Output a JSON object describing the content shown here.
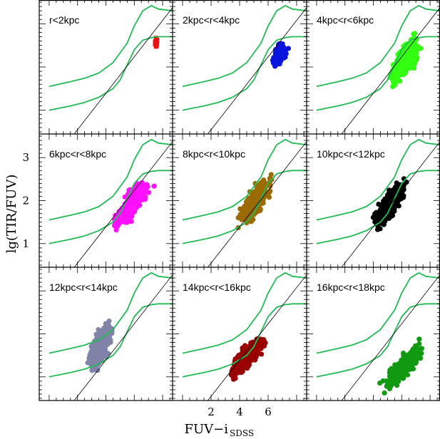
{
  "figure": {
    "xlabel_main": "FUV−i",
    "xlabel_sub": "SDSS",
    "ylabel": "lg(TIR/FUV)",
    "x_tick_labels": [
      "2",
      "4",
      "6"
    ],
    "y_tick_labels": [
      "1",
      "2",
      "3"
    ]
  },
  "colors": {
    "track": "#22bb55",
    "line": "#000000"
  },
  "chart_data": {
    "type": "scatter",
    "layout": "3x3 grid of panels with shared axes",
    "xlabel": "FUV−iSDSS",
    "ylabel": "lg(TIR/FUV)",
    "xlim": [
      -0.7,
      8.7
    ],
    "ylim": [
      0.45,
      3.55
    ],
    "x_ticks": [
      2,
      4,
      6
    ],
    "y_ticks": [
      1,
      2,
      3
    ],
    "reference_line": {
      "type": "linear",
      "points": [
        [
          0.7,
          0.0
        ],
        [
          9.0,
          3.5
        ]
      ]
    },
    "model_tracks": [
      {
        "x": [
          0.0,
          1.5,
          2.5,
          3.5,
          4.5,
          5.5,
          6.0,
          6.6,
          7.2,
          7.7,
          8.7
        ],
        "y": [
          1.55,
          1.66,
          1.74,
          1.86,
          2.1,
          2.55,
          2.95,
          3.3,
          3.42,
          3.34,
          3.3
        ]
      },
      {
        "x": [
          0.0,
          1.5,
          2.5,
          3.5,
          4.5,
          5.0,
          5.5,
          6.0,
          6.6,
          7.2,
          7.7,
          8.7
        ],
        "y": [
          1.0,
          1.1,
          1.18,
          1.3,
          1.5,
          1.7,
          2.05,
          2.4,
          2.62,
          2.68,
          2.7,
          2.7
        ]
      }
    ],
    "panels": [
      {
        "label": "r<2kpc",
        "color": "#ee1111",
        "marker": "square",
        "center": [
          7.55,
          2.55
        ],
        "spread": [
          0.08,
          0.16
        ],
        "slope": 0.0,
        "n": 14
      },
      {
        "label": "2kpc<r<4kpc",
        "color": "#0a14dd",
        "marker": "circle",
        "center": [
          6.8,
          2.3
        ],
        "spread": [
          0.45,
          0.18
        ],
        "slope": 0.35,
        "n": 110
      },
      {
        "label": "4kpc<r<6kpc",
        "color": "#33ff11",
        "marker": "circle",
        "center": [
          6.2,
          2.15
        ],
        "spread": [
          0.9,
          0.28
        ],
        "slope": 0.4,
        "n": 380
      },
      {
        "label": "6kpc<r<8kpc",
        "color": "#ff11ff",
        "marker": "circle",
        "center": [
          5.9,
          1.95
        ],
        "spread": [
          0.95,
          0.26
        ],
        "slope": 0.38,
        "n": 420
      },
      {
        "label": "8kpc<r<10kpc",
        "color": "#9b6a00",
        "marker": "circle",
        "center": [
          5.1,
          1.98
        ],
        "spread": [
          0.9,
          0.26
        ],
        "slope": 0.38,
        "n": 480
      },
      {
        "label": "10kpc<r<12kpc",
        "color": "#000000",
        "marker": "circle",
        "center": [
          5.2,
          1.92
        ],
        "spread": [
          0.85,
          0.26
        ],
        "slope": 0.4,
        "n": 520
      },
      {
        "label": "12kpc<r<14kpc",
        "color": "#8082a8",
        "marker": "circle",
        "center": [
          3.6,
          1.7
        ],
        "spread": [
          0.65,
          0.34
        ],
        "slope": 0.45,
        "n": 480
      },
      {
        "label": "14kpc<r<16kpc",
        "color": "#990000",
        "marker": "circle",
        "center": [
          4.6,
          1.5
        ],
        "spread": [
          0.95,
          0.22
        ],
        "slope": 0.32,
        "n": 480
      },
      {
        "label": "16kpc<r<18kpc",
        "color": "#119911",
        "marker": "circle",
        "center": [
          6.2,
          1.25
        ],
        "spread": [
          1.1,
          0.25
        ],
        "slope": 0.3,
        "n": 260
      }
    ]
  }
}
